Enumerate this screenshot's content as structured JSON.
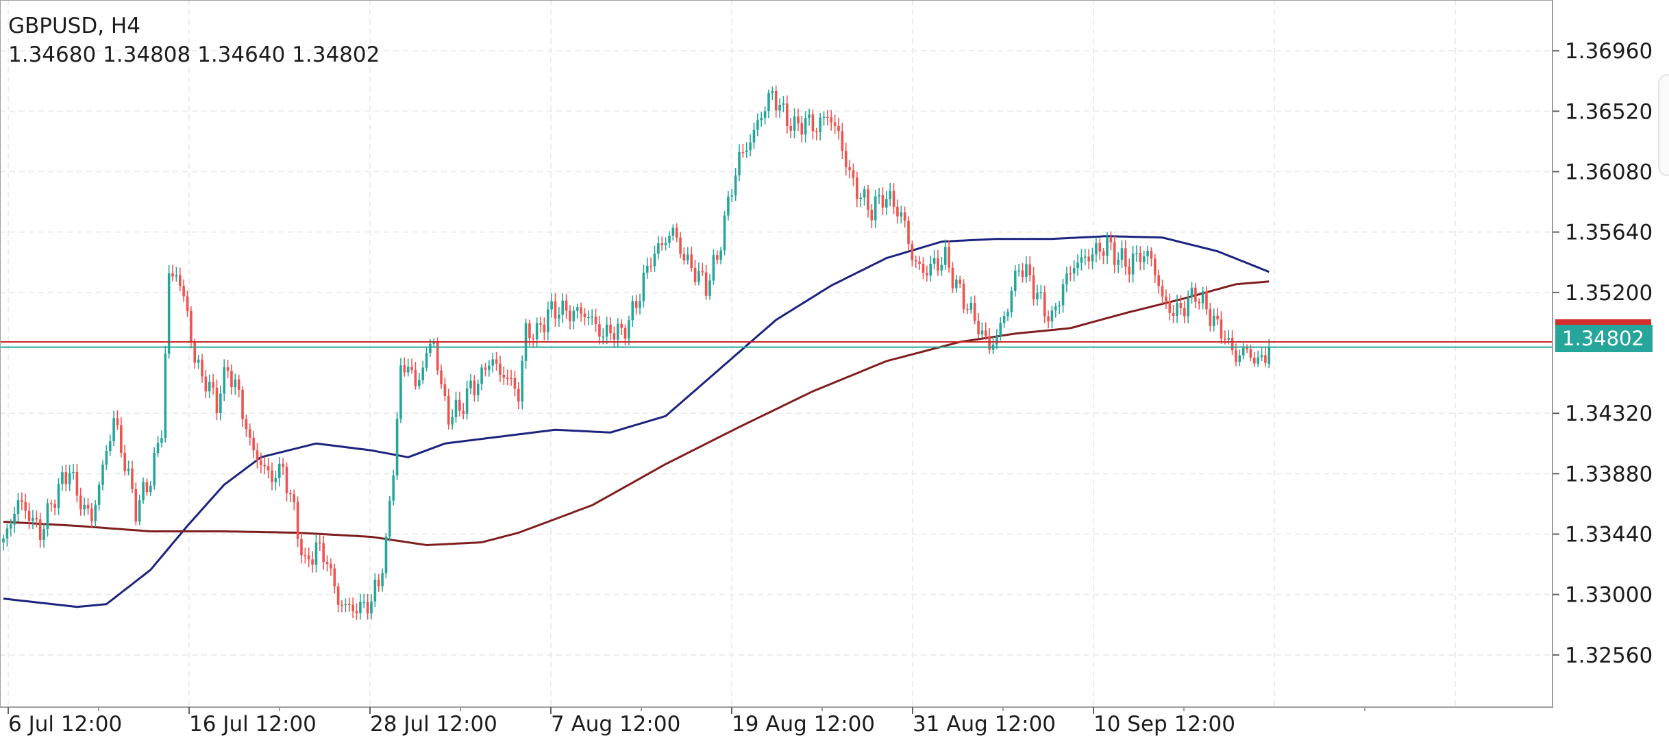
{
  "header": {
    "symbol": "GBPUSD, H4",
    "ohlc": "1.34680 1.34808 1.34640 1.34802"
  },
  "colors": {
    "bull": "#26a69a",
    "bear": "#ef5350",
    "ma_fast": "#1a237e",
    "ma_slow": "#7f1d1d",
    "grid": "#ececec",
    "axis": "#9e9e9e",
    "bid_line": "#26a69a",
    "ask_line": "#c62828"
  },
  "price_axis": {
    "ticks": [
      "1.36960",
      "1.36520",
      "1.36080",
      "1.35640",
      "1.35200",
      "1.34320",
      "1.33880",
      "1.33440",
      "1.33000",
      "1.32560"
    ],
    "current_price_label": "1.34802"
  },
  "time_axis": {
    "labels": [
      "6 Jul 12:00",
      "16 Jul 12:00",
      "28 Jul 12:00",
      "7 Aug 12:00",
      "19 Aug 12:00",
      "31 Aug 12:00",
      "10 Sep 12:00"
    ]
  },
  "chart_data": {
    "type": "candlestick",
    "symbol": "GBPUSD",
    "timeframe": "H4",
    "ylim": [
      1.3218,
      1.3733
    ],
    "y_ticks": [
      1.3696,
      1.3652,
      1.3608,
      1.3564,
      1.352,
      1.3432,
      1.3388,
      1.3344,
      1.33,
      1.3256
    ],
    "x_labels": [
      "6 Jul 12:00",
      "16 Jul 12:00",
      "28 Jul 12:00",
      "7 Aug 12:00",
      "19 Aug 12:00",
      "31 Aug 12:00",
      "10 Sep 12:00"
    ],
    "last": {
      "open": 1.3468,
      "high": 1.34808,
      "low": 1.3464,
      "close": 1.34802
    },
    "bid": 1.34802,
    "ask": 1.3484,
    "close_path": [
      [
        0,
        1.3338
      ],
      [
        4,
        1.3368
      ],
      [
        7,
        1.3358
      ],
      [
        10,
        1.3345
      ],
      [
        14,
        1.3372
      ],
      [
        18,
        1.3392
      ],
      [
        20,
        1.3372
      ],
      [
        24,
        1.3355
      ],
      [
        27,
        1.3392
      ],
      [
        30,
        1.3428
      ],
      [
        34,
        1.3385
      ],
      [
        36,
        1.3362
      ],
      [
        40,
        1.3385
      ],
      [
        43,
        1.342
      ],
      [
        45,
        1.353
      ],
      [
        47,
        1.3535
      ],
      [
        50,
        1.3505
      ],
      [
        52,
        1.347
      ],
      [
        55,
        1.3455
      ],
      [
        58,
        1.344
      ],
      [
        61,
        1.3465
      ],
      [
        64,
        1.3445
      ],
      [
        67,
        1.341
      ],
      [
        70,
        1.3395
      ],
      [
        73,
        1.3385
      ],
      [
        76,
        1.3392
      ],
      [
        79,
        1.336
      ],
      [
        82,
        1.332
      ],
      [
        85,
        1.3335
      ],
      [
        88,
        1.3325
      ],
      [
        91,
        1.3295
      ],
      [
        94,
        1.329
      ],
      [
        97,
        1.329
      ],
      [
        100,
        1.3295
      ],
      [
        102,
        1.331
      ],
      [
        104,
        1.3335
      ],
      [
        106,
        1.3395
      ],
      [
        108,
        1.346
      ],
      [
        110,
        1.347
      ],
      [
        112,
        1.345
      ],
      [
        115,
        1.3475
      ],
      [
        117,
        1.3485
      ],
      [
        119,
        1.345
      ],
      [
        121,
        1.343
      ],
      [
        124,
        1.3435
      ],
      [
        127,
        1.345
      ],
      [
        130,
        1.3458
      ],
      [
        132,
        1.3472
      ],
      [
        135,
        1.3462
      ],
      [
        138,
        1.3455
      ],
      [
        140,
        1.3445
      ],
      [
        142,
        1.3492
      ],
      [
        145,
        1.349
      ],
      [
        148,
        1.3505
      ],
      [
        151,
        1.3508
      ],
      [
        154,
        1.3505
      ],
      [
        157,
        1.3506
      ],
      [
        160,
        1.35
      ],
      [
        163,
        1.3488
      ],
      [
        165,
        1.3493
      ],
      [
        168,
        1.349
      ],
      [
        171,
        1.3505
      ],
      [
        173,
        1.352
      ],
      [
        176,
        1.3545
      ],
      [
        179,
        1.3555
      ],
      [
        182,
        1.3565
      ],
      [
        185,
        1.3545
      ],
      [
        188,
        1.3535
      ],
      [
        191,
        1.3525
      ],
      [
        194,
        1.3545
      ],
      [
        197,
        1.3585
      ],
      [
        200,
        1.3618
      ],
      [
        203,
        1.363
      ],
      [
        206,
        1.365
      ],
      [
        209,
        1.3665
      ],
      [
        212,
        1.365
      ],
      [
        215,
        1.364
      ],
      [
        218,
        1.3645
      ],
      [
        221,
        1.364
      ],
      [
        224,
        1.365
      ],
      [
        227,
        1.3635
      ],
      [
        230,
        1.3605
      ],
      [
        233,
        1.359
      ],
      [
        236,
        1.358
      ],
      [
        239,
        1.359
      ],
      [
        242,
        1.3585
      ],
      [
        245,
        1.357
      ],
      [
        247,
        1.3545
      ],
      [
        250,
        1.3535
      ],
      [
        253,
        1.354
      ],
      [
        256,
        1.3545
      ],
      [
        259,
        1.3525
      ],
      [
        262,
        1.351
      ],
      [
        265,
        1.3495
      ],
      [
        268,
        1.348
      ],
      [
        270,
        1.3488
      ],
      [
        273,
        1.351
      ],
      [
        276,
        1.354
      ],
      [
        279,
        1.353
      ],
      [
        282,
        1.3512
      ],
      [
        285,
        1.35
      ],
      [
        288,
        1.3525
      ],
      [
        291,
        1.354
      ],
      [
        294,
        1.3545
      ],
      [
        297,
        1.355
      ],
      [
        300,
        1.3555
      ],
      [
        303,
        1.3545
      ],
      [
        306,
        1.354
      ],
      [
        309,
        1.3548
      ],
      [
        312,
        1.3545
      ],
      [
        315,
        1.3515
      ],
      [
        318,
        1.3505
      ],
      [
        321,
        1.351
      ],
      [
        324,
        1.352
      ],
      [
        327,
        1.3508
      ],
      [
        330,
        1.3495
      ],
      [
        332,
        1.3488
      ],
      [
        335,
        1.3472
      ],
      [
        337,
        1.3478
      ],
      [
        339,
        1.3475
      ],
      [
        341,
        1.3468
      ],
      [
        344,
        1.348
      ]
    ],
    "ma_fast": [
      [
        0,
        1.3297
      ],
      [
        20,
        1.3291
      ],
      [
        28,
        1.3293
      ],
      [
        40,
        1.3318
      ],
      [
        50,
        1.335
      ],
      [
        60,
        1.338
      ],
      [
        70,
        1.34
      ],
      [
        85,
        1.341
      ],
      [
        100,
        1.3405
      ],
      [
        110,
        1.34
      ],
      [
        120,
        1.341
      ],
      [
        135,
        1.3415
      ],
      [
        150,
        1.342
      ],
      [
        165,
        1.3418
      ],
      [
        180,
        1.343
      ],
      [
        195,
        1.3465
      ],
      [
        210,
        1.35
      ],
      [
        225,
        1.3525
      ],
      [
        240,
        1.3545
      ],
      [
        255,
        1.3557
      ],
      [
        270,
        1.3559
      ],
      [
        285,
        1.3559
      ],
      [
        300,
        1.3561
      ],
      [
        315,
        1.356
      ],
      [
        330,
        1.355
      ],
      [
        344,
        1.3535
      ]
    ],
    "ma_slow": [
      [
        0,
        1.3353
      ],
      [
        20,
        1.335
      ],
      [
        40,
        1.3346
      ],
      [
        60,
        1.3346
      ],
      [
        80,
        1.3345
      ],
      [
        100,
        1.3342
      ],
      [
        115,
        1.3336
      ],
      [
        130,
        1.3338
      ],
      [
        140,
        1.3345
      ],
      [
        160,
        1.3365
      ],
      [
        180,
        1.3395
      ],
      [
        200,
        1.3422
      ],
      [
        220,
        1.3448
      ],
      [
        240,
        1.347
      ],
      [
        260,
        1.3484
      ],
      [
        275,
        1.349
      ],
      [
        290,
        1.3494
      ],
      [
        305,
        1.3505
      ],
      [
        320,
        1.3515
      ],
      [
        335,
        1.3526
      ],
      [
        344,
        1.3528
      ]
    ]
  }
}
